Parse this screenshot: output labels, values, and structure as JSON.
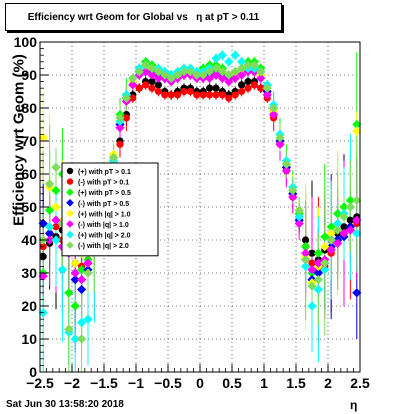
{
  "title": "Efficiency wrt Geom for Global vs   η at pT > 0.11",
  "footer": "Sat Jun 30 13:58:20 2018",
  "chart_data": {
    "type": "scatter",
    "xlabel": "η",
    "ylabel": "Efficiency wrt Geom (%)",
    "xlim": [
      -2.5,
      2.5
    ],
    "ylim": [
      0,
      100
    ],
    "xticks": [
      "−2.5",
      "−2",
      "−1.5",
      "−1",
      "−0.5",
      "0",
      "0.5",
      "1",
      "1.5",
      "2",
      "2.5"
    ],
    "yticks": [
      "0",
      "10",
      "20",
      "30",
      "40",
      "50",
      "60",
      "70",
      "80",
      "90",
      "100"
    ],
    "grid": true,
    "legend_position": "left-middle",
    "series": [
      {
        "name": "(+) with pT > 0.1",
        "color": "#000000",
        "marker": "circle",
        "x": [
          -2.45,
          -2.35,
          -2.25,
          -2.15,
          -2.05,
          -1.95,
          -1.85,
          -1.75,
          -1.65,
          -1.55,
          -1.45,
          -1.35,
          -1.25,
          -1.15,
          -1.05,
          -0.95,
          -0.85,
          -0.75,
          -0.65,
          -0.55,
          -0.45,
          -0.35,
          -0.25,
          -0.15,
          -0.05,
          0.05,
          0.15,
          0.25,
          0.35,
          0.45,
          0.55,
          0.65,
          0.75,
          0.85,
          0.95,
          1.05,
          1.15,
          1.25,
          1.35,
          1.45,
          1.55,
          1.65,
          1.75,
          1.85,
          1.95,
          2.05,
          2.15,
          2.25,
          2.35,
          2.45
        ],
        "y": [
          35,
          39,
          41,
          43,
          41,
          37,
          36,
          37,
          41,
          49,
          55,
          61,
          70,
          78,
          84,
          86,
          88,
          88,
          87,
          85,
          84,
          85,
          86,
          86,
          85,
          85,
          86,
          86,
          85,
          84,
          85,
          87,
          88,
          88,
          86,
          84,
          78,
          70,
          62,
          55,
          48,
          40,
          36,
          34,
          37,
          40,
          42,
          44,
          46,
          47
        ]
      },
      {
        "name": "(-) with pT > 0.1",
        "color": "#ff0000",
        "marker": "circle",
        "x": [
          -2.45,
          -2.35,
          -2.25,
          -2.15,
          -2.05,
          -1.95,
          -1.85,
          -1.75,
          -1.65,
          -1.55,
          -1.45,
          -1.35,
          -1.25,
          -1.15,
          -1.05,
          -0.95,
          -0.85,
          -0.75,
          -0.65,
          -0.55,
          -0.45,
          -0.35,
          -0.25,
          -0.15,
          -0.05,
          0.05,
          0.15,
          0.25,
          0.35,
          0.45,
          0.55,
          0.65,
          0.75,
          0.85,
          0.95,
          1.05,
          1.15,
          1.25,
          1.35,
          1.45,
          1.55,
          1.65,
          1.75,
          1.85,
          1.95,
          2.05,
          2.15,
          2.25,
          2.35,
          2.45
        ],
        "y": [
          38,
          42,
          44,
          40,
          36,
          33,
          32,
          34,
          38,
          44,
          52,
          60,
          69,
          77,
          83,
          86,
          87,
          86,
          85,
          84,
          84,
          84,
          85,
          85,
          84,
          84,
          84,
          84,
          84,
          83,
          84,
          85,
          86,
          87,
          86,
          83,
          77,
          69,
          61,
          53,
          46,
          38,
          33,
          31,
          32,
          36,
          40,
          42,
          44,
          45
        ]
      },
      {
        "name": "(+) with pT > 0.5",
        "color": "#00ff00",
        "marker": "diamond",
        "x": [
          -2.45,
          -2.35,
          -2.25,
          -2.15,
          -2.05,
          -1.95,
          -1.85,
          -1.75,
          -1.65,
          -1.55,
          -1.45,
          -1.35,
          -1.25,
          -1.15,
          -1.05,
          -0.95,
          -0.85,
          -0.75,
          -0.65,
          -0.55,
          -0.45,
          -0.35,
          -0.25,
          -0.15,
          -0.05,
          0.05,
          0.15,
          0.25,
          0.35,
          0.45,
          0.55,
          0.65,
          0.75,
          0.85,
          0.95,
          1.05,
          1.15,
          1.25,
          1.35,
          1.45,
          1.55,
          1.65,
          1.75,
          1.85,
          1.95,
          2.05,
          2.15,
          2.25,
          2.35,
          2.45
        ],
        "y": [
          30,
          49,
          55,
          60,
          24,
          20,
          31,
          34,
          40,
          50,
          58,
          65,
          78,
          84,
          89,
          92,
          94,
          93,
          92,
          91,
          90,
          91,
          92,
          91,
          91,
          92,
          93,
          93,
          92,
          90,
          91,
          92,
          94,
          94,
          92,
          87,
          80,
          72,
          64,
          56,
          48,
          38,
          30,
          36,
          41,
          44,
          48,
          50,
          52,
          75
        ]
      },
      {
        "name": "(-) with pT > 0.5",
        "color": "#0000ff",
        "marker": "diamond",
        "x": [
          -2.45,
          -2.35,
          -2.25,
          -2.15,
          -2.05,
          -1.95,
          -1.85,
          -1.75,
          -1.65,
          -1.55,
          -1.45,
          -1.35,
          -1.25,
          -1.15,
          -1.05,
          -0.95,
          -0.85,
          -0.75,
          -0.65,
          -0.55,
          -0.45,
          -0.35,
          -0.25,
          -0.15,
          -0.05,
          0.05,
          0.15,
          0.25,
          0.35,
          0.45,
          0.55,
          0.65,
          0.75,
          0.85,
          0.95,
          1.05,
          1.15,
          1.25,
          1.35,
          1.45,
          1.55,
          1.65,
          1.75,
          1.85,
          1.95,
          2.05,
          2.15,
          2.25,
          2.35,
          2.45
        ],
        "y": [
          45,
          42,
          46,
          38,
          37,
          28,
          25,
          31,
          38,
          46,
          55,
          64,
          75,
          83,
          88,
          91,
          91,
          91,
          90,
          89,
          89,
          90,
          91,
          91,
          90,
          90,
          90,
          91,
          90,
          89,
          90,
          91,
          92,
          92,
          90,
          85,
          79,
          70,
          62,
          54,
          46,
          34,
          28,
          30,
          33,
          38,
          40,
          41,
          44,
          24
        ]
      },
      {
        "name": "(+) with |q| > 1.0",
        "color": "#ffff00",
        "marker": "diamond",
        "x": [
          -2.45,
          -2.35,
          -2.25,
          -2.15,
          -2.05,
          -1.95,
          -1.85,
          -1.75,
          -1.65,
          -1.55,
          -1.45,
          -1.35,
          -1.25,
          -1.15,
          -1.05,
          -0.95,
          -0.85,
          -0.75,
          -0.65,
          -0.55,
          -0.45,
          -0.35,
          -0.25,
          -0.15,
          -0.05,
          0.05,
          0.15,
          0.25,
          0.35,
          0.45,
          0.55,
          0.65,
          0.75,
          0.85,
          0.95,
          1.05,
          1.15,
          1.25,
          1.35,
          1.45,
          1.55,
          1.65,
          1.75,
          1.85,
          1.95,
          2.05,
          2.15,
          2.25,
          2.35,
          2.45
        ],
        "y": [
          71,
          56,
          50,
          46,
          43,
          33,
          36,
          39,
          42,
          52,
          60,
          66,
          76,
          82,
          88,
          90,
          92,
          92,
          91,
          90,
          89,
          91,
          92,
          92,
          91,
          91,
          92,
          92,
          91,
          90,
          90,
          91,
          92,
          92,
          90,
          86,
          79,
          71,
          63,
          56,
          49,
          35,
          27,
          32,
          38,
          42,
          45,
          48,
          50,
          73
        ]
      },
      {
        "name": "(-) with |q| > 1.0",
        "color": "#ff00ff",
        "marker": "diamond",
        "x": [
          -2.45,
          -2.35,
          -2.25,
          -2.15,
          -2.05,
          -1.95,
          -1.85,
          -1.75,
          -1.65,
          -1.55,
          -1.45,
          -1.35,
          -1.25,
          -1.15,
          -1.05,
          -0.95,
          -0.85,
          -0.75,
          -0.65,
          -0.55,
          -0.45,
          -0.35,
          -0.25,
          -0.15,
          -0.05,
          0.05,
          0.15,
          0.25,
          0.35,
          0.45,
          0.55,
          0.65,
          0.75,
          0.85,
          0.95,
          1.05,
          1.15,
          1.25,
          1.35,
          1.45,
          1.55,
          1.65,
          1.75,
          1.85,
          1.95,
          2.05,
          2.15,
          2.25,
          2.35,
          2.45
        ],
        "y": [
          29,
          40,
          46,
          38,
          36,
          30,
          28,
          33,
          39,
          47,
          55,
          63,
          74,
          82,
          87,
          90,
          91,
          90,
          89,
          89,
          88,
          89,
          90,
          90,
          89,
          89,
          89,
          90,
          89,
          88,
          89,
          90,
          91,
          91,
          89,
          84,
          78,
          69,
          61,
          53,
          45,
          36,
          31,
          33,
          34,
          37,
          39,
          42,
          43,
          46
        ]
      },
      {
        "name": "(+) with |q| > 2.0",
        "color": "#00ffff",
        "marker": "diamond",
        "x": [
          -2.45,
          -2.35,
          -2.25,
          -2.15,
          -2.05,
          -1.95,
          -1.85,
          -1.75,
          -1.65,
          -1.55,
          -1.45,
          -1.35,
          -1.25,
          -1.15,
          -1.05,
          -0.95,
          -0.85,
          -0.75,
          -0.65,
          -0.55,
          -0.45,
          -0.35,
          -0.25,
          -0.15,
          -0.05,
          0.05,
          0.15,
          0.25,
          0.35,
          0.45,
          0.55,
          0.65,
          0.75,
          0.85,
          0.95,
          1.05,
          1.15,
          1.25,
          1.35,
          1.45,
          1.55,
          1.65,
          1.75,
          1.85,
          1.95,
          2.05,
          2.15,
          2.25,
          2.35,
          2.45
        ],
        "y": [
          18,
          44,
          40,
          31,
          12,
          10,
          15,
          16,
          37,
          49,
          57,
          64,
          76,
          84,
          89,
          92,
          93,
          92,
          92,
          91,
          90,
          91,
          92,
          92,
          91,
          91,
          92,
          95,
          96,
          94,
          96,
          94,
          92,
          92,
          91,
          87,
          81,
          72,
          64,
          56,
          47,
          32,
          20,
          25,
          31,
          40,
          45,
          48,
          50,
          42
        ]
      },
      {
        "name": "(-) with |q| > 2.0",
        "color": "#7ddd5a",
        "marker": "diamond",
        "x": [
          -2.45,
          -2.35,
          -2.25,
          -2.15,
          -2.05,
          -1.95,
          -1.85,
          -1.75,
          -1.65,
          -1.55,
          -1.45,
          -1.35,
          -1.25,
          -1.15,
          -1.05,
          -0.95,
          -0.85,
          -0.75,
          -0.65,
          -0.55,
          -0.45,
          -0.35,
          -0.25,
          -0.15,
          -0.05,
          0.05,
          0.15,
          0.25,
          0.35,
          0.45,
          0.55,
          0.65,
          0.75,
          0.85,
          0.95,
          1.05,
          1.15,
          1.25,
          1.35,
          1.45,
          1.55,
          1.65,
          1.75,
          1.85,
          1.95,
          2.05,
          2.15,
          2.25,
          2.35,
          2.45
        ],
        "y": [
          40,
          57,
          62,
          45,
          13,
          45,
          10,
          30,
          38,
          48,
          58,
          65,
          77,
          83,
          89,
          91,
          93,
          92,
          91,
          90,
          89,
          90,
          91,
          91,
          90,
          90,
          91,
          92,
          91,
          90,
          91,
          92,
          93,
          93,
          91,
          86,
          80,
          71,
          63,
          55,
          49,
          34,
          26,
          28,
          33,
          40,
          43,
          47,
          50,
          52
        ]
      }
    ]
  }
}
